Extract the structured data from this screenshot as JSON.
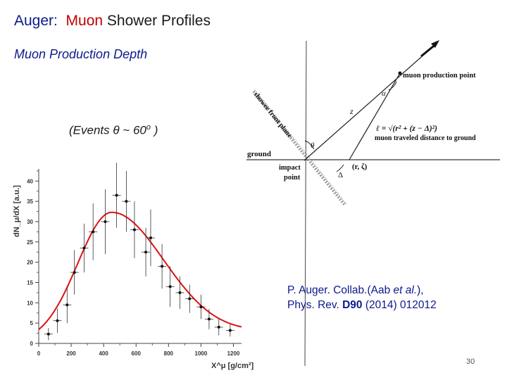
{
  "title": {
    "prefix": "Auger:",
    "accent": "Muon",
    "rest": "Shower Profiles"
  },
  "subtitle": "Muon Production Depth",
  "events_label": {
    "pre": "(Events  θ ~ 60",
    "sup": "o",
    "post": " )"
  },
  "diagram": {
    "muon_production_point": "muon production point",
    "shower_front_plane": "shower front plane",
    "ground": "ground",
    "impact_point_line1": "impact",
    "impact_point_line2": "point",
    "z_label": "z",
    "alpha_label": "α",
    "theta_label": "θ",
    "delta_label": "Δ",
    "r_zeta_label": "(r, ζ)",
    "ell_formula": "ℓ = √(r² + (z − Δ)²)",
    "ell_desc": "muon traveled distance to ground"
  },
  "citation": {
    "line1_pre": "P. Auger. Collab.(Aab ",
    "line1_em": "et al.",
    "line1_post": "),",
    "line2_pre": "Phys. Rev. ",
    "line2_bold": "D90",
    "line2_post": " (2014) 012012"
  },
  "page_number": "30",
  "chart_data": {
    "type": "scatter",
    "ylabel": "dN_μ/dX [a.u.]",
    "xlabel": "X^μ [g/cm²]",
    "xlim": [
      0,
      1250
    ],
    "ylim": [
      0,
      43
    ],
    "x_ticks": [
      0,
      200,
      400,
      600,
      800,
      1000,
      1200
    ],
    "y_ticks": [
      0,
      5,
      10,
      15,
      20,
      25,
      30,
      35,
      40
    ],
    "points": [
      {
        "x": 60,
        "y": 2.3,
        "err": 1.5
      },
      {
        "x": 115,
        "y": 5.6,
        "err": 3.0
      },
      {
        "x": 175,
        "y": 9.5,
        "err": 4.5
      },
      {
        "x": 220,
        "y": 17.5,
        "err": 5.5
      },
      {
        "x": 280,
        "y": 23.5,
        "err": 6.0
      },
      {
        "x": 335,
        "y": 27.5,
        "err": 7.0
      },
      {
        "x": 410,
        "y": 30.0,
        "err": 8.0
      },
      {
        "x": 480,
        "y": 36.5,
        "err": 8.0
      },
      {
        "x": 540,
        "y": 35.0,
        "err": 7.5
      },
      {
        "x": 590,
        "y": 28.0,
        "err": 7.0
      },
      {
        "x": 660,
        "y": 22.5,
        "err": 6.0
      },
      {
        "x": 690,
        "y": 26.0,
        "err": 7.0
      },
      {
        "x": 760,
        "y": 19.0,
        "err": 5.5
      },
      {
        "x": 810,
        "y": 14.0,
        "err": 5.0
      },
      {
        "x": 870,
        "y": 12.5,
        "err": 4.0
      },
      {
        "x": 930,
        "y": 11.0,
        "err": 3.5
      },
      {
        "x": 1000,
        "y": 9.0,
        "err": 3.0
      },
      {
        "x": 1050,
        "y": 6.0,
        "err": 2.5
      },
      {
        "x": 1110,
        "y": 4.0,
        "err": 2.0
      },
      {
        "x": 1180,
        "y": 3.2,
        "err": 1.5
      }
    ],
    "fit": {
      "type": "curve",
      "peak_x": 450,
      "peak_y": 32.3,
      "start": [
        0,
        0.2
      ],
      "end": [
        1250,
        2.5
      ]
    },
    "grid": false,
    "legend": "none"
  }
}
